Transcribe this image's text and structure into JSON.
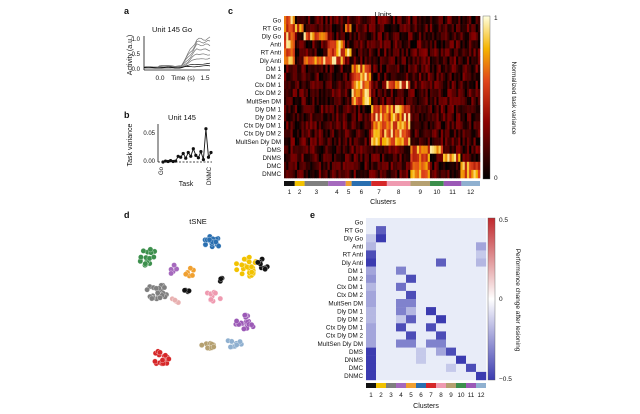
{
  "panel_labels": {
    "a": "a",
    "b": "b",
    "c": "c",
    "d": "d",
    "e": "e"
  },
  "colors": {
    "cluster_colors": [
      "#111111",
      "#f2c200",
      "#7f7f7f",
      "#a569bd",
      "#f0a030",
      "#2a6fb0",
      "#d62728",
      "#ef9ab0",
      "#b5a070",
      "#3c8f4c",
      "#9b59b6",
      "#8fb0d0",
      "#e8b0b0"
    ]
  },
  "tasks": [
    "Go",
    "RT Go",
    "Dly Go",
    "Anti",
    "RT Anti",
    "Dly Anti",
    "DM 1",
    "DM 2",
    "Ctx DM 1",
    "Ctx DM 2",
    "MultSen DM",
    "Dly DM 1",
    "Dly DM 2",
    "Ctx Dly DM 1",
    "Ctx Dly DM 2",
    "MultSen Dly DM",
    "DMS",
    "DNMS",
    "DMC",
    "DNMC"
  ],
  "panel_a": {
    "title": "Unit 145 Go",
    "ylabel": "Activity (a.u.)",
    "xlabel": "Time (s)",
    "yticks": [
      "0.0",
      "0.5",
      "1.0"
    ],
    "xticks": [
      "0.0",
      "1.5"
    ]
  },
  "panel_b": {
    "title": "Unit 145",
    "ylabel": "Task variance",
    "xlabel": "Task",
    "yticks": [
      "0.00",
      "0.05"
    ],
    "xtick_first": "Go",
    "xtick_last": "DNMC",
    "chart_data": {
      "type": "line",
      "title": "Unit 145",
      "xlabel": "Task",
      "ylabel": "Task variance",
      "ylim": [
        0,
        0.08
      ],
      "x_first": "Go",
      "x_last": "DNMC",
      "values": [
        0.0,
        0.002,
        0.001,
        0.003,
        0.001,
        0.002,
        0.012,
        0.01,
        0.018,
        0.008,
        0.02,
        0.012,
        0.028,
        0.014,
        0.009,
        0.022,
        0.005,
        0.07,
        0.01,
        0.02
      ]
    }
  },
  "panel_c": {
    "title": "Units",
    "colorbar_label": "Normalized task variance",
    "colorbar_ticks": [
      "1",
      "0"
    ],
    "xlabel": "Clusters",
    "cluster_labels": [
      "1",
      "2",
      "3",
      "4",
      "5",
      "6",
      "7",
      "8",
      "9",
      "10",
      "11",
      "12"
    ],
    "chart_data": {
      "type": "heatmap",
      "title": "Units",
      "xlabel": "Clusters",
      "rows": [
        "Go",
        "RT Go",
        "Dly Go",
        "Anti",
        "RT Anti",
        "Dly Anti",
        "DM 1",
        "DM 2",
        "Ctx DM 1",
        "Ctx DM 2",
        "MultSen DM",
        "Dly DM 1",
        "Dly DM 2",
        "Ctx Dly DM 1",
        "Ctx Dly DM 2",
        "MultSen Dly DM",
        "DMS",
        "DNMS",
        "DMC",
        "DNMC"
      ],
      "cluster_labels": [
        "1",
        "2",
        "3",
        "4",
        "5",
        "6",
        "7",
        "8",
        "9",
        "10",
        "11",
        "12"
      ],
      "colorbar_range": [
        0,
        1
      ],
      "colorbar_label": "Normalized task variance"
    }
  },
  "panel_d": {
    "title": "tSNE",
    "chart_data": {
      "type": "scatter",
      "title": "tSNE",
      "clusters": [
        "1",
        "2",
        "3",
        "4",
        "5",
        "6",
        "7",
        "8",
        "9",
        "10",
        "11",
        "12"
      ]
    }
  },
  "panel_e": {
    "xlabel": "Clusters",
    "colorbar_label": "Performance change after lesioning",
    "colorbar_ticks": [
      "0.5",
      "0",
      "−0.5"
    ],
    "cluster_labels": [
      "1",
      "2",
      "3",
      "4",
      "5",
      "6",
      "7",
      "8",
      "9",
      "10",
      "11",
      "12"
    ],
    "chart_data": {
      "type": "heatmap",
      "xlabel": "Clusters",
      "rows": [
        "Go",
        "RT Go",
        "Dly Go",
        "Anti",
        "RT Anti",
        "Dly Anti",
        "DM 1",
        "DM 2",
        "Ctx DM 1",
        "Ctx DM 2",
        "MultSen DM",
        "Dly DM 1",
        "Dly DM 2",
        "Ctx Dly DM 1",
        "Ctx Dly DM 2",
        "MultSen Dly DM",
        "DMS",
        "DNMS",
        "DMC",
        "DNMC"
      ],
      "columns": [
        "1",
        "2",
        "3",
        "4",
        "5",
        "6",
        "7",
        "8",
        "9",
        "10",
        "11",
        "12"
      ],
      "colorbar_range": [
        -0.5,
        0.5
      ],
      "colorbar_label": "Performance change after lesioning",
      "values": [
        [
          0,
          0,
          0,
          0,
          0,
          0,
          0,
          0,
          0,
          0,
          0,
          0
        ],
        [
          0,
          -0.4,
          0,
          0,
          0,
          0,
          0,
          0,
          0,
          0,
          0,
          0
        ],
        [
          -0.1,
          -0.5,
          0,
          0,
          0,
          0,
          0,
          0,
          0,
          0,
          0,
          0
        ],
        [
          -0.15,
          0,
          0,
          0,
          0,
          0,
          0,
          0,
          0,
          0,
          0,
          -0.2
        ],
        [
          -0.45,
          0,
          0,
          0,
          0,
          0,
          0,
          0,
          0,
          0,
          0,
          -0.1
        ],
        [
          -0.5,
          0,
          0,
          0,
          0,
          0,
          0,
          -0.4,
          0,
          0,
          0,
          -0.15
        ],
        [
          -0.2,
          0,
          0,
          -0.3,
          0,
          0,
          0,
          0,
          0,
          0,
          0,
          0
        ],
        [
          -0.25,
          0,
          0,
          0,
          -0.45,
          0,
          0,
          0,
          0,
          0,
          0,
          0
        ],
        [
          -0.15,
          0,
          0,
          -0.35,
          0,
          0,
          0,
          0,
          0,
          0,
          0,
          0
        ],
        [
          -0.2,
          0,
          0,
          0,
          -0.45,
          0,
          0,
          0,
          0,
          0,
          0,
          0
        ],
        [
          -0.2,
          0,
          0,
          -0.3,
          -0.3,
          0,
          0,
          0,
          0,
          0,
          0,
          0
        ],
        [
          -0.15,
          0,
          0,
          -0.3,
          -0.15,
          0,
          -0.5,
          0,
          0,
          0,
          0,
          0
        ],
        [
          -0.15,
          0,
          0,
          -0.1,
          -0.4,
          0,
          0,
          -0.5,
          0,
          0,
          0,
          0
        ],
        [
          -0.2,
          0,
          0,
          -0.45,
          0,
          0,
          -0.45,
          0,
          0,
          0,
          0,
          0
        ],
        [
          -0.2,
          0,
          0,
          0,
          -0.45,
          0,
          0,
          -0.45,
          0,
          0,
          0,
          0
        ],
        [
          -0.2,
          0,
          0,
          -0.3,
          -0.3,
          0,
          -0.3,
          -0.3,
          0,
          0,
          0,
          0
        ],
        [
          -0.5,
          0,
          0,
          0,
          0,
          -0.1,
          0,
          -0.2,
          -0.45,
          0,
          0,
          0
        ],
        [
          -0.5,
          0,
          0,
          0,
          0,
          -0.1,
          0,
          0,
          0,
          -0.5,
          0,
          0
        ],
        [
          -0.5,
          0,
          0,
          0,
          0,
          0,
          0,
          0,
          -0.1,
          0,
          -0.45,
          0
        ],
        [
          -0.5,
          0,
          0,
          0,
          0,
          0,
          0,
          0,
          0,
          0,
          0,
          -0.5
        ]
      ]
    }
  }
}
